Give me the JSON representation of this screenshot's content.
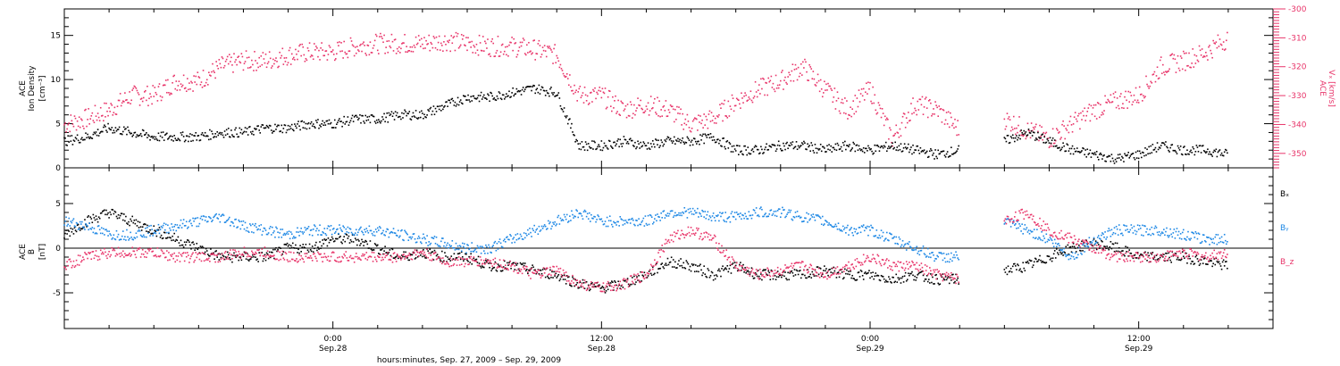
{
  "chart_data": [
    {
      "type": "scatter",
      "panel": "top",
      "ylabel_left": [
        "ACE",
        "Ion Density",
        "[cm⁻³]"
      ],
      "ylabel_right": [
        "ACE",
        "Vₓ [km/s]"
      ],
      "ylim_left": [
        0,
        18
      ],
      "yticks_left": [
        "0",
        "5",
        "10",
        "15"
      ],
      "ylim_right": [
        -355,
        -300
      ],
      "yticks_right": [
        "-300",
        "-310",
        "-320",
        "-330",
        "-340",
        "-350"
      ],
      "grid": false,
      "series": [
        {
          "axis": "left",
          "color": "#000000",
          "x_hours": [
            0,
            1,
            2,
            3,
            4,
            5,
            6,
            7,
            8,
            9,
            10,
            11,
            12,
            13,
            14,
            15,
            16,
            17,
            18,
            19,
            20,
            21,
            22,
            23,
            24,
            25,
            26,
            27,
            28,
            29,
            30,
            31,
            32,
            33,
            34,
            35,
            36,
            37,
            38,
            39,
            40,
            41,
            42,
            43,
            44,
            45,
            46,
            47,
            48,
            49,
            50,
            51,
            52
          ],
          "values": [
            3,
            3.5,
            4.5,
            4,
            3.5,
            3.5,
            3.5,
            4,
            4,
            4.5,
            4.5,
            5,
            5,
            5.5,
            5.5,
            6,
            6,
            7,
            8,
            8,
            8.5,
            9,
            8.5,
            2.5,
            2.5,
            3,
            2.5,
            3,
            3,
            3.5,
            2,
            2,
            2.5,
            2.5,
            2,
            2.5,
            2,
            2.5,
            2,
            1.5,
            2,
            null,
            3,
            4,
            3,
            2,
            1.5,
            1,
            1.5,
            2.5,
            2,
            2,
            1.5
          ]
        },
        {
          "axis": "right",
          "color": "#e8356a",
          "x_hours": [
            0,
            1,
            2,
            3,
            4,
            5,
            6,
            7,
            8,
            9,
            10,
            11,
            12,
            13,
            14,
            15,
            16,
            17,
            18,
            19,
            20,
            21,
            22,
            23,
            24,
            25,
            26,
            27,
            28,
            29,
            30,
            31,
            32,
            33,
            34,
            35,
            36,
            37,
            38,
            39,
            40,
            41,
            42,
            43,
            44,
            45,
            46,
            47,
            48,
            49,
            50,
            51,
            52
          ],
          "values": [
            -340,
            -338,
            -335,
            -330,
            -330,
            -325,
            -325,
            -320,
            -318,
            -318,
            -316,
            -315,
            -315,
            -313,
            -312,
            -312,
            -312,
            -311,
            -312,
            -313,
            -313,
            -314,
            -316,
            -330,
            -330,
            -335,
            -333,
            -335,
            -340,
            -338,
            -332,
            -328,
            -325,
            -320,
            -328,
            -335,
            -328,
            -345,
            -333,
            -335,
            -342,
            null,
            -338,
            -342,
            -345,
            -340,
            -335,
            -332,
            -330,
            -320,
            -318,
            -315,
            -310
          ]
        }
      ]
    },
    {
      "type": "scatter",
      "panel": "bottom",
      "ylabel": [
        "ACE",
        "B",
        "[nT]"
      ],
      "ylim": [
        -9,
        9
      ],
      "yticks": [
        "-5",
        "0",
        "5"
      ],
      "zero_line": true,
      "grid": false,
      "legend_position": "right",
      "series": [
        {
          "name": "Bₓ",
          "color": "#000000",
          "x_hours": [
            0,
            1,
            2,
            3,
            4,
            5,
            6,
            7,
            8,
            9,
            10,
            11,
            12,
            13,
            14,
            15,
            16,
            17,
            18,
            19,
            20,
            21,
            22,
            23,
            24,
            25,
            26,
            27,
            28,
            29,
            30,
            31,
            32,
            33,
            34,
            35,
            36,
            37,
            38,
            39,
            40,
            41,
            42,
            43,
            44,
            45,
            46,
            47,
            48,
            49,
            50,
            51,
            52
          ],
          "values": [
            1.5,
            3,
            4,
            3,
            2,
            1,
            0,
            -1,
            -1,
            -1,
            0,
            0,
            1,
            1,
            0,
            -1,
            -0.5,
            -1,
            -1,
            -2,
            -2,
            -2.5,
            -3,
            -4,
            -4.5,
            -4,
            -3,
            -1.5,
            -2,
            -3,
            -2,
            -3,
            -3,
            -3,
            -2.5,
            -3,
            -3,
            -3.5,
            -3,
            -3.5,
            -3.5,
            null,
            -2.5,
            -2,
            -1,
            0,
            0.5,
            0,
            -1,
            -1,
            -1,
            -1.5,
            -2
          ]
        },
        {
          "name": "Bᵧ",
          "color": "#1e88e5",
          "x_hours": [
            0,
            1,
            2,
            3,
            4,
            5,
            6,
            7,
            8,
            9,
            10,
            11,
            12,
            13,
            14,
            15,
            16,
            17,
            18,
            19,
            20,
            21,
            22,
            23,
            24,
            25,
            26,
            27,
            28,
            29,
            30,
            31,
            32,
            33,
            34,
            35,
            36,
            37,
            38,
            39,
            40,
            41,
            42,
            43,
            44,
            45,
            46,
            47,
            48,
            49,
            50,
            51,
            52
          ],
          "values": [
            3,
            2.5,
            1.5,
            1.5,
            2,
            2.5,
            3,
            3.5,
            2.5,
            2,
            1.5,
            2,
            2,
            2,
            2,
            1.5,
            1,
            0.5,
            0,
            0,
            1,
            2,
            3,
            4,
            3,
            3,
            3,
            4,
            4,
            3.5,
            3.5,
            4,
            4,
            3.5,
            3,
            2,
            2,
            1,
            0,
            -1,
            -1,
            null,
            3,
            2,
            1,
            -1,
            1,
            2,
            2,
            2,
            1.5,
            1,
            1
          ]
        },
        {
          "name": "B_z",
          "color": "#e8356a",
          "x_hours": [
            0,
            1,
            2,
            3,
            4,
            5,
            6,
            7,
            8,
            9,
            10,
            11,
            12,
            13,
            14,
            15,
            16,
            17,
            18,
            19,
            20,
            21,
            22,
            23,
            24,
            25,
            26,
            27,
            28,
            29,
            30,
            31,
            32,
            33,
            34,
            35,
            36,
            37,
            38,
            39,
            40,
            41,
            42,
            43,
            44,
            45,
            46,
            47,
            48,
            49,
            50,
            51,
            52
          ],
          "values": [
            -2,
            -1,
            -0.5,
            -0.5,
            -0.5,
            -1,
            -1,
            -1,
            -0.5,
            -0.5,
            -1,
            -1,
            -1,
            -1,
            -1,
            -1,
            -0.5,
            -1.5,
            -1.5,
            -1.5,
            -2,
            -3,
            -2.5,
            -4,
            -4.5,
            -4,
            -3,
            1,
            2,
            1,
            -2,
            -3,
            -2.5,
            -2,
            -3,
            -2,
            -1,
            -2,
            -2,
            -3,
            -3.5,
            null,
            3,
            4,
            2,
            1,
            0,
            -1,
            -1,
            -1,
            -0.5,
            -1,
            -0.5
          ]
        }
      ]
    }
  ],
  "x_axis": {
    "xlabel": "hours:minutes, Sep. 27, 2009 – Sep. 29, 2009",
    "ticks": [
      {
        "hour": 12,
        "time": "0:00",
        "date": "Sep.28"
      },
      {
        "hour": 24,
        "time": "12:00",
        "date": "Sep.28"
      },
      {
        "hour": 36,
        "time": "0:00",
        "date": "Sep.29"
      },
      {
        "hour": 48,
        "time": "12:00",
        "date": "Sep.29"
      }
    ],
    "xlim_hours": [
      0,
      54
    ]
  },
  "legend": [
    {
      "label": "Bₓ",
      "color": "#000000"
    },
    {
      "label": "Bᵧ",
      "color": "#1e88e5"
    },
    {
      "label": "B_z",
      "color": "#e8356a"
    }
  ]
}
